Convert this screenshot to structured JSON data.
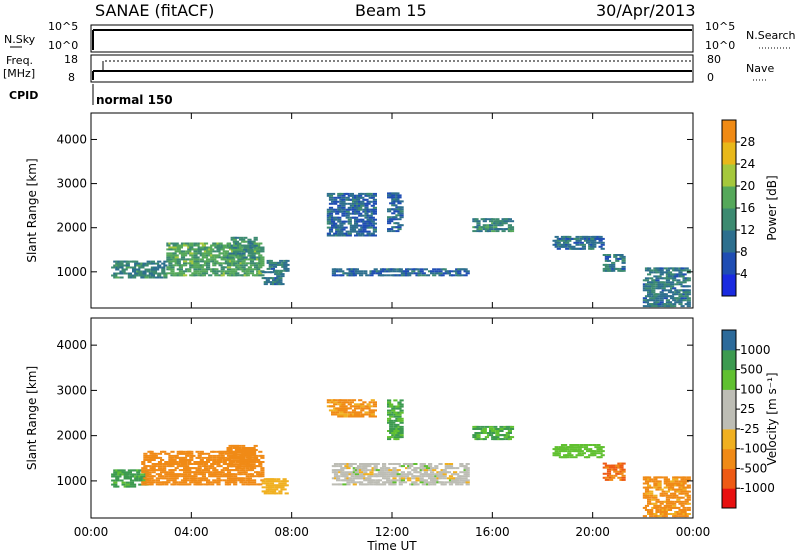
{
  "header": {
    "station": "SANAE (fitACF)",
    "beam": "Beam 15",
    "date": "30/Apr/2013"
  },
  "strip_panels": {
    "nsky_label": "N.Sky",
    "nsearch_label": "N.Search",
    "freq_label_line1": "Freq.",
    "freq_label_line2": "[MHz]",
    "nave_label": "Nave",
    "cpid_label": "CPID",
    "cpid_value": "normal 150",
    "noise_ticks_left": [
      "10^5",
      "10^0"
    ],
    "noise_ticks_right": [
      "10^5",
      "10^0"
    ],
    "freq_ticks_left": [
      "18",
      "8"
    ],
    "nave_ticks_right": [
      "80",
      "0"
    ]
  },
  "colors": {
    "trace": "#000000",
    "ground_scatter": "#bdbdb5",
    "power_scale": [
      "#1a2be0",
      "#1f4db3",
      "#2d6f8e",
      "#3c8a70",
      "#55a85a",
      "#a5c83c",
      "#e8b81a",
      "#f08a14",
      "#ea5a10",
      "#d81e10"
    ],
    "velocity_scale": [
      "#e81010",
      "#ee5a14",
      "#f08a16",
      "#f0b020",
      "#bdbdb5",
      "#bdbdb5",
      "#60c030",
      "#3c9a50",
      "#2c6a9a",
      "#1f3fc0"
    ]
  },
  "chart_data": [
    {
      "type": "heatmap",
      "name": "power",
      "ylabel": "Slant Range [km]",
      "yticks": [
        "1000",
        "2000",
        "3000",
        "4000"
      ],
      "ylim": [
        180,
        4600
      ],
      "xlim": [
        0,
        24
      ],
      "colorbar_label": "Power [dB]",
      "colorbar_ticks": [
        "4",
        "8",
        "12",
        "16",
        "20",
        "24",
        "28"
      ],
      "colorbar_range": [
        0,
        30
      ],
      "regions": [
        {
          "t0": 0.8,
          "t1": 3.0,
          "r0": 850,
          "r1": 1250,
          "level": 9
        },
        {
          "t0": 3.0,
          "t1": 6.8,
          "r0": 900,
          "r1": 1650,
          "level": 12
        },
        {
          "t0": 5.4,
          "t1": 6.6,
          "r0": 1300,
          "r1": 1800,
          "level": 10
        },
        {
          "t0": 6.8,
          "t1": 7.6,
          "r0": 700,
          "r1": 1000,
          "level": 8
        },
        {
          "t0": 7.0,
          "t1": 7.8,
          "r0": 1000,
          "r1": 1250,
          "level": 8
        },
        {
          "t0": 9.6,
          "t1": 15.0,
          "r0": 900,
          "r1": 1100,
          "level": 6
        },
        {
          "t0": 9.4,
          "t1": 11.3,
          "r0": 1800,
          "r1": 2800,
          "level": 6
        },
        {
          "t0": 11.8,
          "t1": 12.4,
          "r0": 1900,
          "r1": 2800,
          "level": 6
        },
        {
          "t0": 15.2,
          "t1": 16.8,
          "r0": 1900,
          "r1": 2200,
          "level": 9
        },
        {
          "t0": 18.4,
          "t1": 20.4,
          "r0": 1500,
          "r1": 1800,
          "level": 7
        },
        {
          "t0": 20.4,
          "t1": 21.2,
          "r0": 1000,
          "r1": 1400,
          "level": 8
        },
        {
          "t0": 22.0,
          "t1": 23.8,
          "r0": 200,
          "r1": 1100,
          "level": 8
        }
      ]
    },
    {
      "type": "heatmap",
      "name": "velocity",
      "ylabel": "Slant Range [km]",
      "yticks": [
        "1000",
        "2000",
        "3000",
        "4000"
      ],
      "ylim": [
        180,
        4600
      ],
      "xlim": [
        0,
        24
      ],
      "xticks": [
        "00:00",
        "04:00",
        "08:00",
        "12:00",
        "16:00",
        "20:00",
        "00:00"
      ],
      "xlabel": "Time UT",
      "colorbar_label": "Velocity [m s⁻¹]",
      "colorbar_ticks": [
        "1000",
        "500",
        "100",
        "25",
        "-25",
        "-100",
        "-500",
        "-1000"
      ],
      "regions": [
        {
          "t0": 0.8,
          "t1": 2.2,
          "r0": 850,
          "r1": 1250,
          "vel": 150
        },
        {
          "t0": 2.0,
          "t1": 6.8,
          "r0": 900,
          "r1": 1650,
          "vel": -200
        },
        {
          "t0": 5.4,
          "t1": 6.6,
          "r0": 1300,
          "r1": 1800,
          "vel": -300
        },
        {
          "t0": 6.8,
          "t1": 7.8,
          "r0": 700,
          "r1": 1050,
          "vel": -60
        },
        {
          "t0": 9.6,
          "t1": 15.0,
          "r0": 900,
          "r1": 1400,
          "vel": 0
        },
        {
          "t0": 9.4,
          "t1": 11.3,
          "r0": 2400,
          "r1": 2800,
          "vel": -150
        },
        {
          "t0": 11.8,
          "t1": 12.4,
          "r0": 1900,
          "r1": 2800,
          "vel": 120
        },
        {
          "t0": 15.2,
          "t1": 16.8,
          "r0": 1900,
          "r1": 2200,
          "vel": 120
        },
        {
          "t0": 18.4,
          "t1": 20.4,
          "r0": 1500,
          "r1": 1800,
          "vel": 60
        },
        {
          "t0": 20.4,
          "t1": 21.2,
          "r0": 1000,
          "r1": 1400,
          "vel": -500
        },
        {
          "t0": 22.0,
          "t1": 23.8,
          "r0": 200,
          "r1": 1100,
          "vel": -150
        }
      ]
    }
  ]
}
